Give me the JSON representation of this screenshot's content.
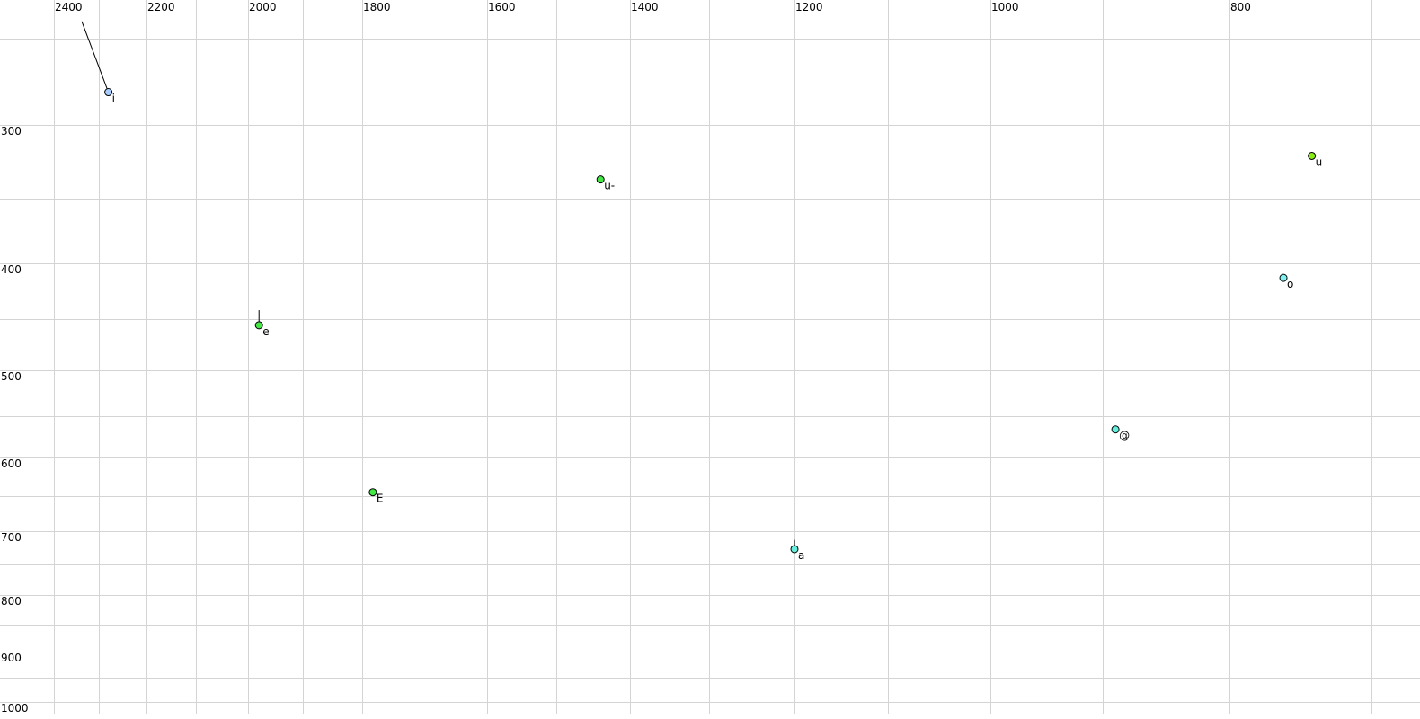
{
  "chart_data": {
    "type": "scatter",
    "title": "",
    "xlabel": "",
    "ylabel": "",
    "x_axis": {
      "reversed": true,
      "scale": "log",
      "range": [
        2400,
        700
      ],
      "tick_labels": [
        "2400",
        "2200",
        "2000",
        "1800",
        "1600",
        "1400",
        "1200",
        "1000",
        "800"
      ],
      "gridlines": [
        2400,
        2300,
        2200,
        2100,
        2000,
        1900,
        1800,
        1700,
        1600,
        1500,
        1400,
        1300,
        1200,
        1100,
        1000,
        900,
        800,
        700
      ]
    },
    "y_axis": {
      "reversed": true,
      "scale": "log",
      "range": [
        250,
        1000
      ],
      "tick_labels": [
        "300",
        "400",
        "500",
        "600",
        "700",
        "800",
        "900",
        "1000"
      ],
      "gridlines": [
        250,
        300,
        350,
        400,
        450,
        500,
        550,
        600,
        650,
        700,
        750,
        800,
        850,
        900,
        950,
        1000
      ]
    },
    "grid": true,
    "points": [
      {
        "label": "i",
        "x": 2280,
        "y": 281,
        "color": "#a8ccff",
        "trail": {
          "x": 2338,
          "y": 240
        }
      },
      {
        "label": "e",
        "x": 1980,
        "y": 456,
        "color": "#44e844",
        "trail": {
          "x": 1980,
          "y": 442
        }
      },
      {
        "label": "E",
        "x": 1782,
        "y": 645,
        "color": "#44e844"
      },
      {
        "label": "u-",
        "x": 1440,
        "y": 337,
        "color": "#44e844"
      },
      {
        "label": "a",
        "x": 1200,
        "y": 727,
        "color": "#66eedd",
        "trail": {
          "x": 1200,
          "y": 713
        }
      },
      {
        "label": "@",
        "x": 890,
        "y": 566,
        "color": "#66eedd"
      },
      {
        "label": "o",
        "x": 762,
        "y": 413,
        "color": "#80f0f0"
      },
      {
        "label": "u",
        "x": 742,
        "y": 321,
        "color": "#88ee11"
      }
    ]
  }
}
